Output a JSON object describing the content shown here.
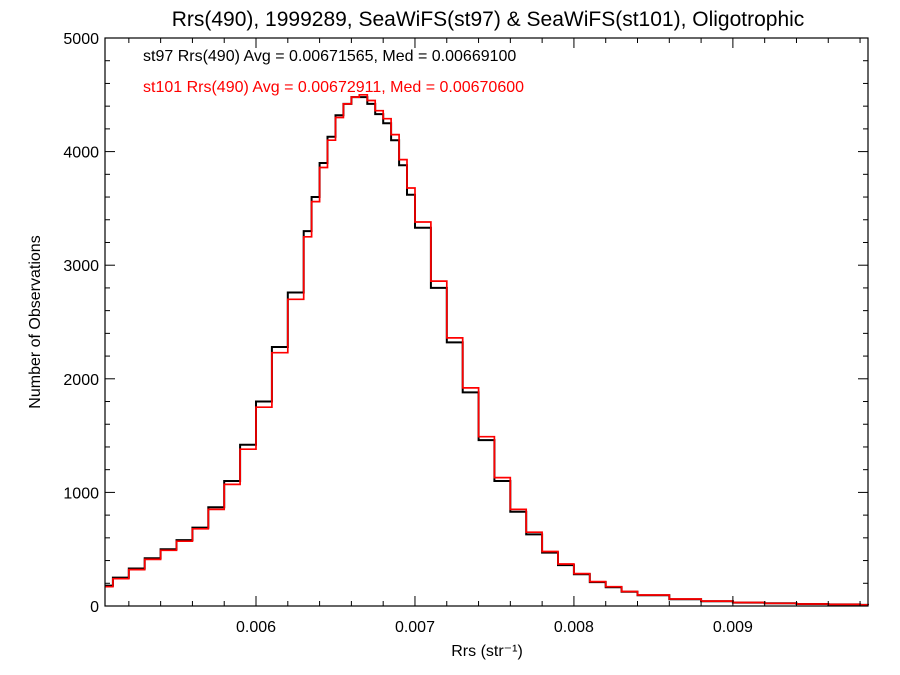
{
  "chart_data": {
    "type": "line",
    "title": "Rrs(490), 1999289, SeaWiFS(st97) & SeaWiFS(st101), Oligotrophic",
    "xlabel": "Rrs (str⁻¹)",
    "ylabel": "Number of Observations",
    "xlim": [
      0.00505,
      0.00985
    ],
    "ylim": [
      0,
      5000
    ],
    "x_ticks": [
      0.006,
      0.007,
      0.008,
      0.009
    ],
    "x_tick_labels": [
      "0.006",
      "0.007",
      "0.008",
      "0.009"
    ],
    "y_ticks": [
      0,
      1000,
      2000,
      3000,
      4000,
      5000
    ],
    "y_tick_labels": [
      "0",
      "1000",
      "2000",
      "3000",
      "4000",
      "5000"
    ],
    "grid": false,
    "step": true,
    "annotations": [
      {
        "text": "st97 Rrs(490) Avg = 0.00671565, Med = 0.00669100",
        "color": "#000000"
      },
      {
        "text": "st101 Rrs(490) Avg = 0.00672911, Med = 0.00670600",
        "color": "#ff0000"
      }
    ],
    "x": [
      0.00505,
      0.0051,
      0.0052,
      0.0053,
      0.0054,
      0.0055,
      0.0056,
      0.0057,
      0.0058,
      0.0059,
      0.006,
      0.0061,
      0.0062,
      0.0063,
      0.00635,
      0.0064,
      0.00645,
      0.0065,
      0.00655,
      0.0066,
      0.00665,
      0.0067,
      0.00675,
      0.0068,
      0.00685,
      0.0069,
      0.00695,
      0.007,
      0.0071,
      0.0072,
      0.0073,
      0.0074,
      0.0075,
      0.0076,
      0.0077,
      0.0078,
      0.0079,
      0.008,
      0.0081,
      0.0082,
      0.0083,
      0.0084,
      0.0086,
      0.0088,
      0.009,
      0.0092,
      0.0094,
      0.0096,
      0.0098,
      0.00985
    ],
    "series": [
      {
        "color": "#000000",
        "values": [
          180,
          250,
          330,
          420,
          500,
          580,
          690,
          870,
          1100,
          1420,
          1800,
          2280,
          2760,
          3300,
          3600,
          3900,
          4130,
          4320,
          4420,
          4480,
          4480,
          4420,
          4330,
          4250,
          4100,
          3880,
          3620,
          3330,
          2800,
          2320,
          1880,
          1460,
          1100,
          830,
          630,
          470,
          360,
          280,
          210,
          165,
          125,
          95,
          60,
          42,
          30,
          24,
          18,
          14,
          10,
          8
        ]
      },
      {
        "color": "#ff0000",
        "values": [
          170,
          240,
          320,
          410,
          490,
          570,
          680,
          850,
          1070,
          1380,
          1750,
          2230,
          2700,
          3250,
          3560,
          3860,
          4100,
          4300,
          4420,
          4480,
          4500,
          4450,
          4360,
          4290,
          4150,
          3930,
          3680,
          3380,
          2860,
          2360,
          1920,
          1490,
          1130,
          850,
          650,
          480,
          370,
          285,
          215,
          170,
          128,
          97,
          62,
          43,
          31,
          24,
          18,
          14,
          10,
          8
        ]
      }
    ]
  }
}
